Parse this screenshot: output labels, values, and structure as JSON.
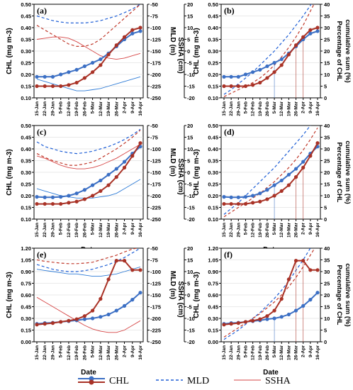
{
  "figure": {
    "dates": [
      "15-Jan",
      "22-Jan",
      "29-Jan",
      "5-Feb",
      "12-Feb",
      "19-Feb",
      "26-Feb",
      "5-Mar",
      "12-Mar",
      "19-Mar",
      "26-Mar",
      "2-Apr",
      "9-Apr",
      "16-Apr"
    ],
    "xlabel": "Date",
    "left_ylabel": "CHL (mg m-3)",
    "mld_label": "MLD (m)",
    "ssha_label": "SSHA (cm)",
    "pct_label_line1": "Percentage of CHL",
    "pct_label_line2": "cumulative sum (%)",
    "colors": {
      "chl_blue": "#3b6fc4",
      "chl_red": "#a93226",
      "mld": "#1f5fd6",
      "ssha": "#c0392b"
    },
    "legend": [
      {
        "key": "chl_blue",
        "label": "CHL",
        "style": "line-dot",
        "color": "#3b6fc4"
      },
      {
        "key": "chl_red",
        "label": "",
        "style": "line-dot",
        "color": "#a93226"
      },
      {
        "key": "mld",
        "label": "MLD",
        "style": "dashed",
        "color": "#1f5fd6"
      },
      {
        "key": "ssha",
        "label": "SSHA",
        "style": "thin",
        "color": "#c0392b"
      }
    ]
  },
  "chart_data": [
    {
      "panel": "(a)",
      "type": "line",
      "x": [
        "15-Jan",
        "22-Jan",
        "29-Jan",
        "5-Feb",
        "12-Feb",
        "19-Feb",
        "26-Feb",
        "5-Mar",
        "12-Mar",
        "19-Mar",
        "26-Mar",
        "2-Apr",
        "9-Apr",
        "16-Apr"
      ],
      "ylim": [
        0.1,
        0.5
      ],
      "yticks": [
        "0.10",
        "0.15",
        "0.20",
        "0.25",
        "0.30",
        "0.35",
        "0.40",
        "0.45",
        "0.50"
      ],
      "ylim_mld": [
        -250,
        -50
      ],
      "yticks_mld": [
        "-250",
        "-225",
        "-200",
        "-175",
        "-150",
        "-125",
        "-100",
        "-75",
        "-50"
      ],
      "ylim_ssha": [
        -20,
        20
      ],
      "yticks_ssha": [
        "-20",
        "-15",
        "-10",
        "-5",
        "0",
        "5",
        "10",
        "15",
        "20"
      ],
      "series": [
        {
          "key": "chl_blue",
          "axis": "chl",
          "values": [
            0.19,
            0.19,
            0.19,
            0.2,
            0.21,
            0.22,
            0.235,
            0.25,
            0.265,
            0.29,
            0.32,
            0.35,
            0.375,
            0.385
          ]
        },
        {
          "key": "chl_red",
          "axis": "chl",
          "values": [
            0.15,
            0.15,
            0.15,
            0.15,
            0.155,
            0.165,
            0.185,
            0.21,
            0.24,
            0.285,
            0.325,
            0.36,
            0.39,
            0.4
          ]
        },
        {
          "key": "mld_blue",
          "axis": "mld",
          "color": "#1f5fd6",
          "dash": true,
          "values": [
            -75,
            -80,
            -85,
            -88,
            -90,
            -90,
            -90,
            -88,
            -85,
            -80,
            -75,
            -68,
            -60,
            -50
          ]
        },
        {
          "key": "mld_red",
          "axis": "mld",
          "color": "#c0392b",
          "dash": true,
          "values": [
            -95,
            -105,
            -115,
            -125,
            -135,
            -140,
            -140,
            -135,
            -125,
            -110,
            -95,
            -80,
            -65,
            -50
          ]
        },
        {
          "key": "ssha_blue",
          "axis": "ssha",
          "color": "#2e7bd6",
          "values": [
            -12,
            -13,
            -14,
            -15,
            -16,
            -17,
            -17,
            -16.5,
            -16,
            -15,
            -14,
            -13,
            -12,
            -11
          ]
        },
        {
          "key": "ssha_red",
          "axis": "ssha",
          "color": "#d64545",
          "values": [
            5,
            5.5,
            6,
            6,
            5.5,
            4,
            2,
            0,
            -2,
            -3,
            -3.5,
            -3,
            -2,
            -1
          ]
        }
      ]
    },
    {
      "panel": "(b)",
      "type": "line",
      "x": [
        "15-Jan",
        "22-Jan",
        "29-Jan",
        "5-Feb",
        "12-Feb",
        "19-Feb",
        "26-Feb",
        "5-Mar",
        "12-Mar",
        "19-Mar",
        "26-Mar",
        "2-Apr",
        "9-Apr",
        "16-Apr"
      ],
      "ylim": [
        0.1,
        0.5
      ],
      "yticks": [
        "0.10",
        "0.15",
        "0.20",
        "0.25",
        "0.30",
        "0.35",
        "0.40",
        "0.45",
        "0.50"
      ],
      "ylim_pct": [
        0,
        40
      ],
      "yticks_pct": [
        "0",
        "5",
        "10",
        "15",
        "20",
        "25",
        "30",
        "35",
        "40"
      ],
      "series": [
        {
          "key": "chl_blue",
          "axis": "chl",
          "values": [
            0.19,
            0.19,
            0.19,
            0.2,
            0.21,
            0.22,
            0.235,
            0.25,
            0.265,
            0.29,
            0.32,
            0.35,
            0.375,
            0.385
          ]
        },
        {
          "key": "chl_red",
          "axis": "chl",
          "values": [
            0.15,
            0.15,
            0.15,
            0.15,
            0.155,
            0.165,
            0.185,
            0.21,
            0.24,
            0.285,
            0.325,
            0.36,
            0.39,
            0.4
          ]
        },
        {
          "key": "cum_blue",
          "axis": "pct",
          "color": "#1f5fd6",
          "dash": true,
          "values": [
            1.5,
            3.5,
            6,
            8.5,
            11,
            14,
            17,
            20,
            23.5,
            27,
            31,
            35,
            39.5,
            44
          ]
        },
        {
          "key": "cum_red",
          "axis": "pct",
          "color": "#c0392b",
          "dash": true,
          "values": [
            0.5,
            2,
            3.5,
            5,
            6.5,
            8.5,
            11,
            14,
            17.5,
            21.5,
            26,
            31,
            37,
            43
          ]
        }
      ]
    },
    {
      "panel": "(c)",
      "type": "line",
      "x": [
        "15-Jan",
        "22-Jan",
        "29-Jan",
        "5-Feb",
        "12-Feb",
        "19-Feb",
        "26-Feb",
        "5-Mar",
        "12-Mar",
        "19-Mar",
        "26-Mar",
        "2-Apr",
        "9-Apr",
        "16-Apr"
      ],
      "ylim": [
        0.1,
        0.5
      ],
      "yticks": [
        "0.10",
        "0.15",
        "0.20",
        "0.25",
        "0.30",
        "0.35",
        "0.40",
        "0.45",
        "0.50"
      ],
      "ylim_mld": [
        -250,
        -50
      ],
      "yticks_mld": [
        "-250",
        "-225",
        "-200",
        "-175",
        "-150",
        "-125",
        "-100",
        "-75",
        "-50"
      ],
      "ylim_ssha": [
        -20,
        20
      ],
      "yticks_ssha": [
        "-20",
        "-15",
        "-10",
        "-5",
        "0",
        "5",
        "10",
        "15",
        "20"
      ],
      "series": [
        {
          "key": "chl_blue",
          "axis": "chl",
          "values": [
            0.195,
            0.193,
            0.193,
            0.195,
            0.2,
            0.21,
            0.225,
            0.245,
            0.265,
            0.29,
            0.315,
            0.345,
            0.38,
            0.41
          ]
        },
        {
          "key": "chl_red",
          "axis": "chl",
          "values": [
            0.165,
            0.165,
            0.165,
            0.165,
            0.17,
            0.175,
            0.185,
            0.2,
            0.22,
            0.245,
            0.28,
            0.32,
            0.37,
            0.425
          ]
        },
        {
          "key": "mld_blue",
          "axis": "mld",
          "color": "#1f5fd6",
          "dash": true,
          "values": [
            -85,
            -95,
            -100,
            -105,
            -108,
            -110,
            -108,
            -105,
            -100,
            -95,
            -88,
            -80,
            -70,
            -58
          ]
        },
        {
          "key": "mld_red",
          "axis": "mld",
          "color": "#c0392b",
          "dash": true,
          "values": [
            -110,
            -118,
            -125,
            -130,
            -135,
            -135,
            -132,
            -128,
            -120,
            -110,
            -100,
            -88,
            -75,
            -60
          ]
        },
        {
          "key": "ssha_blue",
          "axis": "ssha",
          "color": "#2e7bd6",
          "values": [
            -7,
            -8,
            -9,
            -10,
            -10.5,
            -11,
            -11,
            -11,
            -10.5,
            -10,
            -9,
            -7,
            -5,
            -3
          ]
        },
        {
          "key": "ssha_red",
          "axis": "ssha",
          "color": "#d64545",
          "values": [
            7,
            6,
            4.5,
            3,
            2,
            1.5,
            1.5,
            2,
            3,
            4.5,
            6,
            8,
            10,
            12
          ]
        }
      ]
    },
    {
      "panel": "(d)",
      "type": "line",
      "x": [
        "15-Jan",
        "22-Jan",
        "29-Jan",
        "5-Feb",
        "12-Feb",
        "19-Feb",
        "26-Feb",
        "5-Mar",
        "12-Mar",
        "19-Mar",
        "26-Mar",
        "2-Apr",
        "9-Apr",
        "16-Apr"
      ],
      "ylim": [
        0.1,
        0.5
      ],
      "yticks": [
        "0.10",
        "0.15",
        "0.20",
        "0.25",
        "0.30",
        "0.35",
        "0.40",
        "0.45",
        "0.50"
      ],
      "ylim_pct": [
        0,
        40
      ],
      "yticks_pct": [
        "0",
        "5",
        "10",
        "15",
        "20",
        "25",
        "30",
        "35",
        "40"
      ],
      "series": [
        {
          "key": "chl_blue",
          "axis": "chl",
          "values": [
            0.195,
            0.193,
            0.193,
            0.195,
            0.2,
            0.21,
            0.225,
            0.245,
            0.265,
            0.29,
            0.315,
            0.345,
            0.38,
            0.41
          ]
        },
        {
          "key": "chl_red",
          "axis": "chl",
          "values": [
            0.165,
            0.165,
            0.165,
            0.165,
            0.17,
            0.175,
            0.185,
            0.2,
            0.22,
            0.245,
            0.28,
            0.32,
            0.37,
            0.425
          ]
        },
        {
          "key": "cum_blue",
          "axis": "pct",
          "color": "#1f5fd6",
          "dash": true,
          "values": [
            2,
            4.5,
            7,
            10,
            13,
            16,
            19,
            22,
            25.5,
            29,
            32.5,
            36,
            40,
            44
          ]
        },
        {
          "key": "cum_red",
          "axis": "pct",
          "color": "#c0392b",
          "dash": true,
          "values": [
            1,
            3,
            5,
            7,
            9,
            11,
            13.5,
            16,
            19,
            22,
            25.5,
            29.5,
            34,
            39
          ]
        }
      ]
    },
    {
      "panel": "(e)",
      "type": "line",
      "x": [
        "15-Jan",
        "22-Jan",
        "29-Jan",
        "5-Feb",
        "12-Feb",
        "19-Feb",
        "26-Feb",
        "5-Mar",
        "12-Mar",
        "19-Mar",
        "26-Mar",
        "2-Apr",
        "9-Apr",
        "16-Apr"
      ],
      "ylim": [
        0.0,
        1.2
      ],
      "yticks": [
        "0.00",
        "0.15",
        "0.30",
        "0.45",
        "0.60",
        "0.75",
        "0.90",
        "1.05",
        "1.20"
      ],
      "ylim_mld": [
        -250,
        -50
      ],
      "yticks_mld": [
        "-250",
        "-225",
        "-200",
        "-175",
        "-150",
        "-125",
        "-100",
        "-75",
        "-50"
      ],
      "ylim_ssha": [
        -20,
        20
      ],
      "yticks_ssha": [
        "-20",
        "-15",
        "-10",
        "-5",
        "0",
        "5",
        "10",
        "15",
        "20"
      ],
      "series": [
        {
          "key": "chl_blue",
          "axis": "chl",
          "values": [
            0.23,
            0.24,
            0.245,
            0.255,
            0.265,
            0.275,
            0.29,
            0.3,
            0.32,
            0.35,
            0.4,
            0.46,
            0.54,
            0.63
          ]
        },
        {
          "key": "chl_red",
          "axis": "chl",
          "values": [
            0.22,
            0.23,
            0.24,
            0.255,
            0.27,
            0.29,
            0.33,
            0.4,
            0.55,
            0.8,
            1.04,
            1.04,
            0.92,
            0.92
          ]
        },
        {
          "key": "mld_blue",
          "axis": "mld",
          "color": "#1f5fd6",
          "dash": true,
          "values": [
            -85,
            -90,
            -95,
            -98,
            -100,
            -100,
            -98,
            -95,
            -90,
            -85,
            -78,
            -70,
            -60,
            -50
          ]
        },
        {
          "key": "mld_red",
          "axis": "mld",
          "color": "#c0392b",
          "dash": true,
          "values": [
            -75,
            -78,
            -80,
            -82,
            -83,
            -83,
            -82,
            -80,
            -75,
            -70,
            -65,
            -58,
            -52,
            -48
          ]
        },
        {
          "key": "ssha_blue",
          "axis": "ssha",
          "color": "#2e7bd6",
          "values": [
            11,
            10.5,
            10,
            9.5,
            9,
            9,
            8.5,
            8,
            8,
            8.5,
            9,
            10,
            11,
            12
          ]
        },
        {
          "key": "ssha_red",
          "axis": "ssha",
          "color": "#d64545",
          "values": [
            -1,
            -3,
            -5,
            -7,
            -9,
            -11,
            -13,
            -14.5,
            -15.5,
            -16,
            -16,
            -15,
            -13,
            -11
          ]
        }
      ]
    },
    {
      "panel": "(f)",
      "type": "line",
      "x": [
        "15-Jan",
        "22-Jan",
        "29-Jan",
        "5-Feb",
        "12-Feb",
        "19-Feb",
        "26-Feb",
        "5-Mar",
        "12-Mar",
        "19-Mar",
        "26-Mar",
        "2-Apr",
        "9-Apr",
        "16-Apr"
      ],
      "ylim": [
        0.0,
        1.2
      ],
      "yticks": [
        "0.00",
        "0.15",
        "0.30",
        "0.45",
        "0.60",
        "0.75",
        "0.90",
        "1.05",
        "1.20"
      ],
      "ylim_pct": [
        0,
        40
      ],
      "yticks_pct": [
        "0",
        "5",
        "10",
        "15",
        "20",
        "25",
        "30",
        "35",
        "40"
      ],
      "series": [
        {
          "key": "chl_blue",
          "axis": "chl",
          "values": [
            0.23,
            0.24,
            0.245,
            0.255,
            0.265,
            0.275,
            0.29,
            0.3,
            0.32,
            0.35,
            0.4,
            0.46,
            0.54,
            0.63
          ]
        },
        {
          "key": "chl_red",
          "axis": "chl",
          "values": [
            0.22,
            0.23,
            0.24,
            0.255,
            0.27,
            0.29,
            0.33,
            0.4,
            0.55,
            0.8,
            1.04,
            1.04,
            0.92,
            0.92
          ]
        },
        {
          "key": "cum_blue",
          "axis": "pct",
          "color": "#1f5fd6",
          "dash": true,
          "values": [
            1,
            3,
            5,
            7.5,
            10,
            12.5,
            15.5,
            18.5,
            22,
            26,
            30.5,
            35,
            40,
            45
          ]
        },
        {
          "key": "cum_red",
          "axis": "pct",
          "color": "#c0392b",
          "dash": true,
          "values": [
            2,
            4,
            6,
            8,
            10,
            12,
            14.5,
            17,
            20,
            23.5,
            27.5,
            32,
            37,
            42
          ]
        }
      ]
    }
  ]
}
